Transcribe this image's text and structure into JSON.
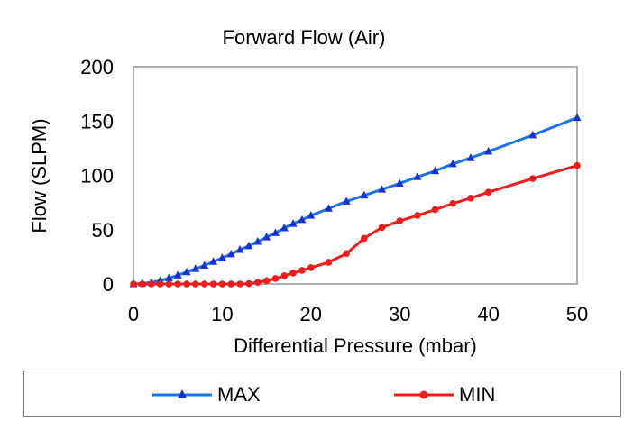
{
  "chart_data": {
    "type": "line",
    "title": "Forward Flow (Air)",
    "xlabel": "Differential Pressure (mbar)",
    "ylabel": "Flow (SLPM)",
    "xlim": [
      0,
      50
    ],
    "ylim": [
      0,
      200
    ],
    "xticks": [
      0,
      10,
      20,
      30,
      40,
      50
    ],
    "yticks": [
      0,
      50,
      100,
      150,
      200
    ],
    "grid": false,
    "legend_position": "bottom",
    "series": [
      {
        "name": "MAX",
        "color": "#1874e8",
        "marker": "triangle",
        "x": [
          0,
          1,
          2,
          3,
          4,
          5,
          6,
          7,
          8,
          9,
          10,
          11,
          12,
          13,
          14,
          15,
          16,
          17,
          18,
          19,
          20,
          22,
          24,
          26,
          28,
          30,
          32,
          34,
          36,
          38,
          40,
          45,
          50
        ],
        "y": [
          0,
          0.5,
          1.5,
          3,
          5.5,
          8,
          11,
          14,
          17,
          20.5,
          24,
          27.5,
          31.5,
          35,
          39,
          43,
          47,
          51.5,
          55.5,
          59,
          63,
          69.5,
          76,
          81.5,
          87,
          92.5,
          98.5,
          104,
          110.5,
          116,
          122,
          137,
          153
        ]
      },
      {
        "name": "MIN",
        "color": "#ee1c1c",
        "marker": "circle",
        "x": [
          0,
          1,
          2,
          3,
          4,
          5,
          6,
          7,
          8,
          9,
          10,
          11,
          12,
          13,
          14,
          15,
          16,
          17,
          18,
          19,
          20,
          22,
          24,
          26,
          28,
          30,
          32,
          34,
          36,
          38,
          40,
          45,
          50
        ],
        "y": [
          0,
          0,
          0,
          0,
          0,
          0,
          0,
          0,
          0,
          0,
          0,
          0,
          0,
          0.3,
          1.5,
          3,
          5,
          7.5,
          10,
          12.5,
          15,
          20,
          28,
          42,
          52,
          58,
          63,
          68.5,
          74,
          79,
          84.5,
          97,
          109
        ]
      }
    ]
  }
}
